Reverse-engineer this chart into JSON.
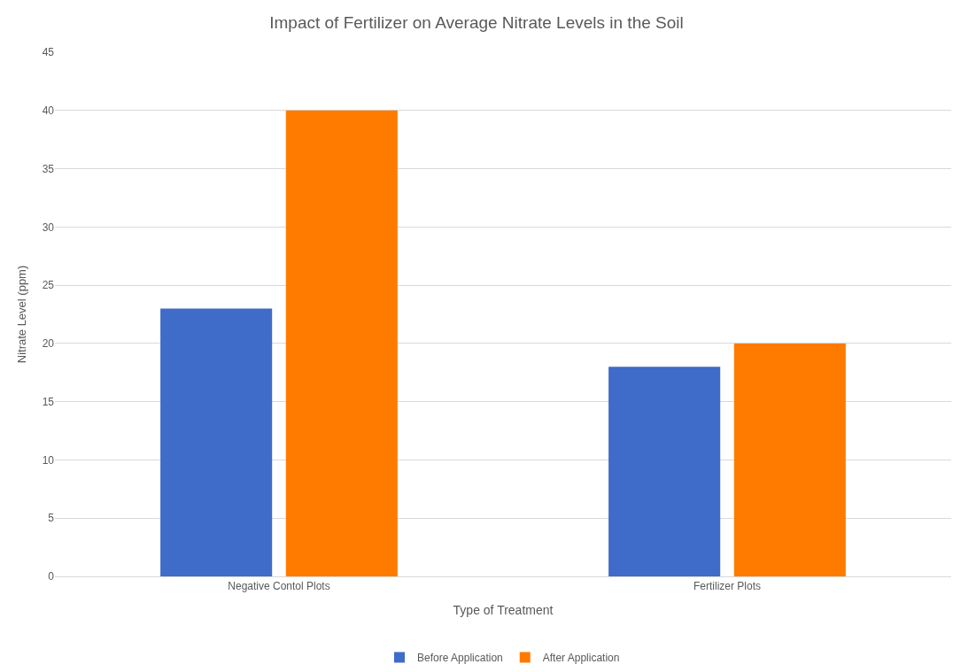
{
  "chart_data": {
    "type": "bar",
    "title": "Impact of Fertilizer on Average Nitrate Levels in the Soil",
    "xlabel": "Type of Treatment",
    "ylabel": "Nitrate Level (ppm)",
    "categories": [
      "Negative Contol Plots",
      "Fertilizer Plots"
    ],
    "series": [
      {
        "name": "Before Application",
        "color": "#3f6bc9",
        "values": [
          23,
          18
        ]
      },
      {
        "name": "After Application",
        "color": "#ff7b00",
        "values": [
          40,
          20
        ]
      }
    ],
    "ylim": [
      0,
      45
    ],
    "yticks": [
      0,
      5,
      10,
      15,
      20,
      25,
      30,
      35,
      40,
      45
    ],
    "grid": "y",
    "legend": "bottom"
  }
}
